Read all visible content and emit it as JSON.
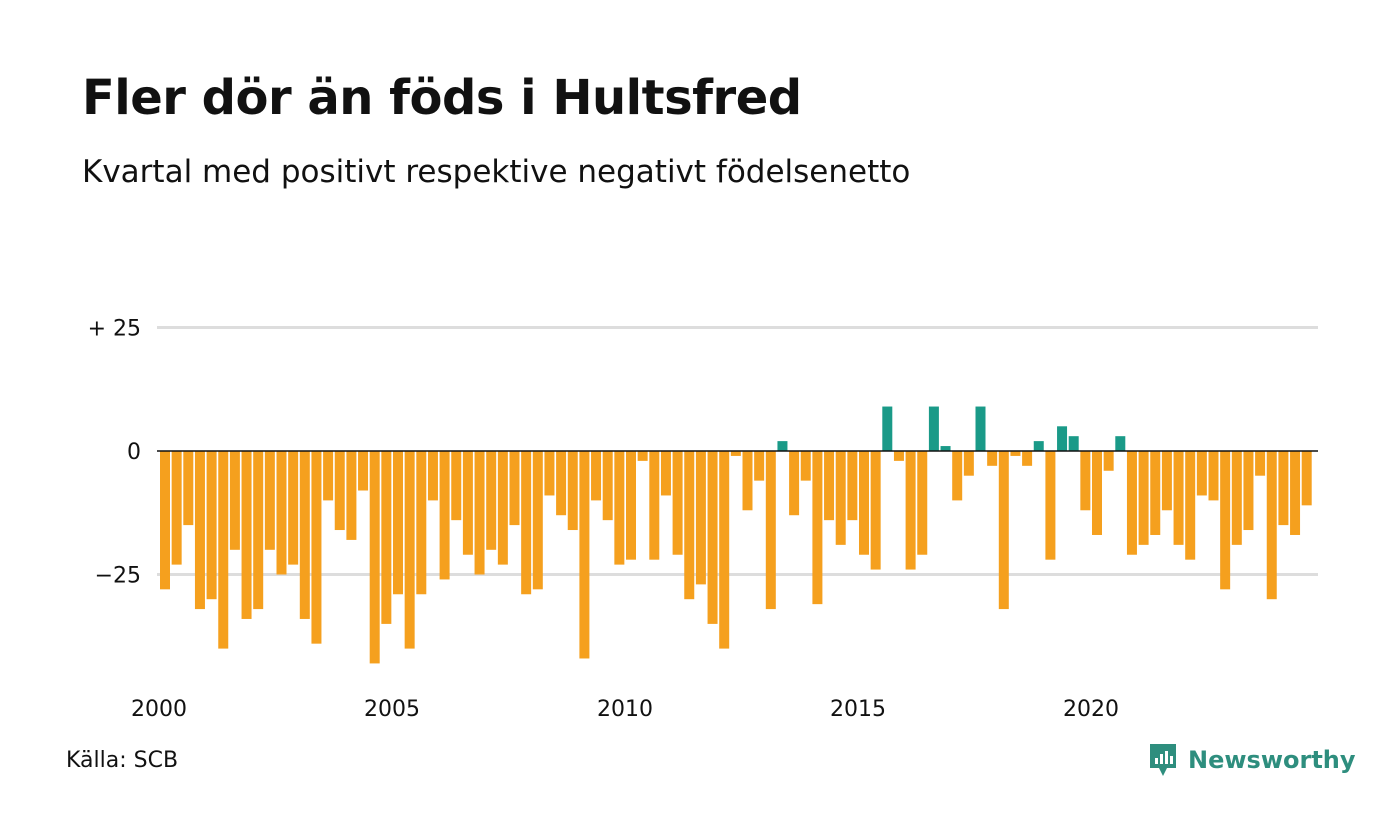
{
  "title": "Fler dör än föds i Hultsfred",
  "subtitle": "Kvartal med positivt respektive negativt födelsenetto",
  "source": "Källa: SCB",
  "brand": "Newsworthy",
  "colors": {
    "positive": "#1a9a88",
    "negative": "#f5a01e",
    "grid": "#dddddd",
    "zero_line": "#111111",
    "brand": "#2e8e7e"
  },
  "chart_data": {
    "type": "bar",
    "x_start_year": 2000,
    "quarters_per_year": 4,
    "x_tick_labels": [
      "2000",
      "2005",
      "2010",
      "2015",
      "2020"
    ],
    "y_ticks": [
      {
        "value": 25,
        "label": "+ 25"
      },
      {
        "value": 0,
        "label": "0"
      },
      {
        "value": -25,
        "label": "−25"
      }
    ],
    "ylim": [
      -45,
      25
    ],
    "grid": true,
    "values": [
      -28,
      -23,
      -15,
      -32,
      -30,
      -40,
      -20,
      -34,
      -32,
      -20,
      -25,
      -23,
      -34,
      -39,
      -10,
      -16,
      -18,
      -8,
      -43,
      -35,
      -29,
      -40,
      -29,
      -10,
      -26,
      -14,
      -21,
      -25,
      -20,
      -23,
      -15,
      -29,
      -28,
      -9,
      -13,
      -16,
      -42,
      -10,
      -14,
      -23,
      -22,
      -2,
      -22,
      -9,
      -21,
      -30,
      -27,
      -35,
      -40,
      -1,
      -12,
      -6,
      -32,
      2,
      -13,
      -6,
      -31,
      -14,
      -19,
      -14,
      -21,
      -24,
      9,
      -2,
      -24,
      -21,
      9,
      1,
      -10,
      -5,
      9,
      -3,
      -32,
      -1,
      -3,
      2,
      -22,
      5,
      3,
      -12,
      -17,
      -4,
      3,
      -21,
      -19,
      -17,
      -12,
      -19,
      -22,
      -9,
      -10,
      -28,
      -19,
      -16,
      -5,
      -30,
      -15,
      -17,
      -11
    ]
  }
}
